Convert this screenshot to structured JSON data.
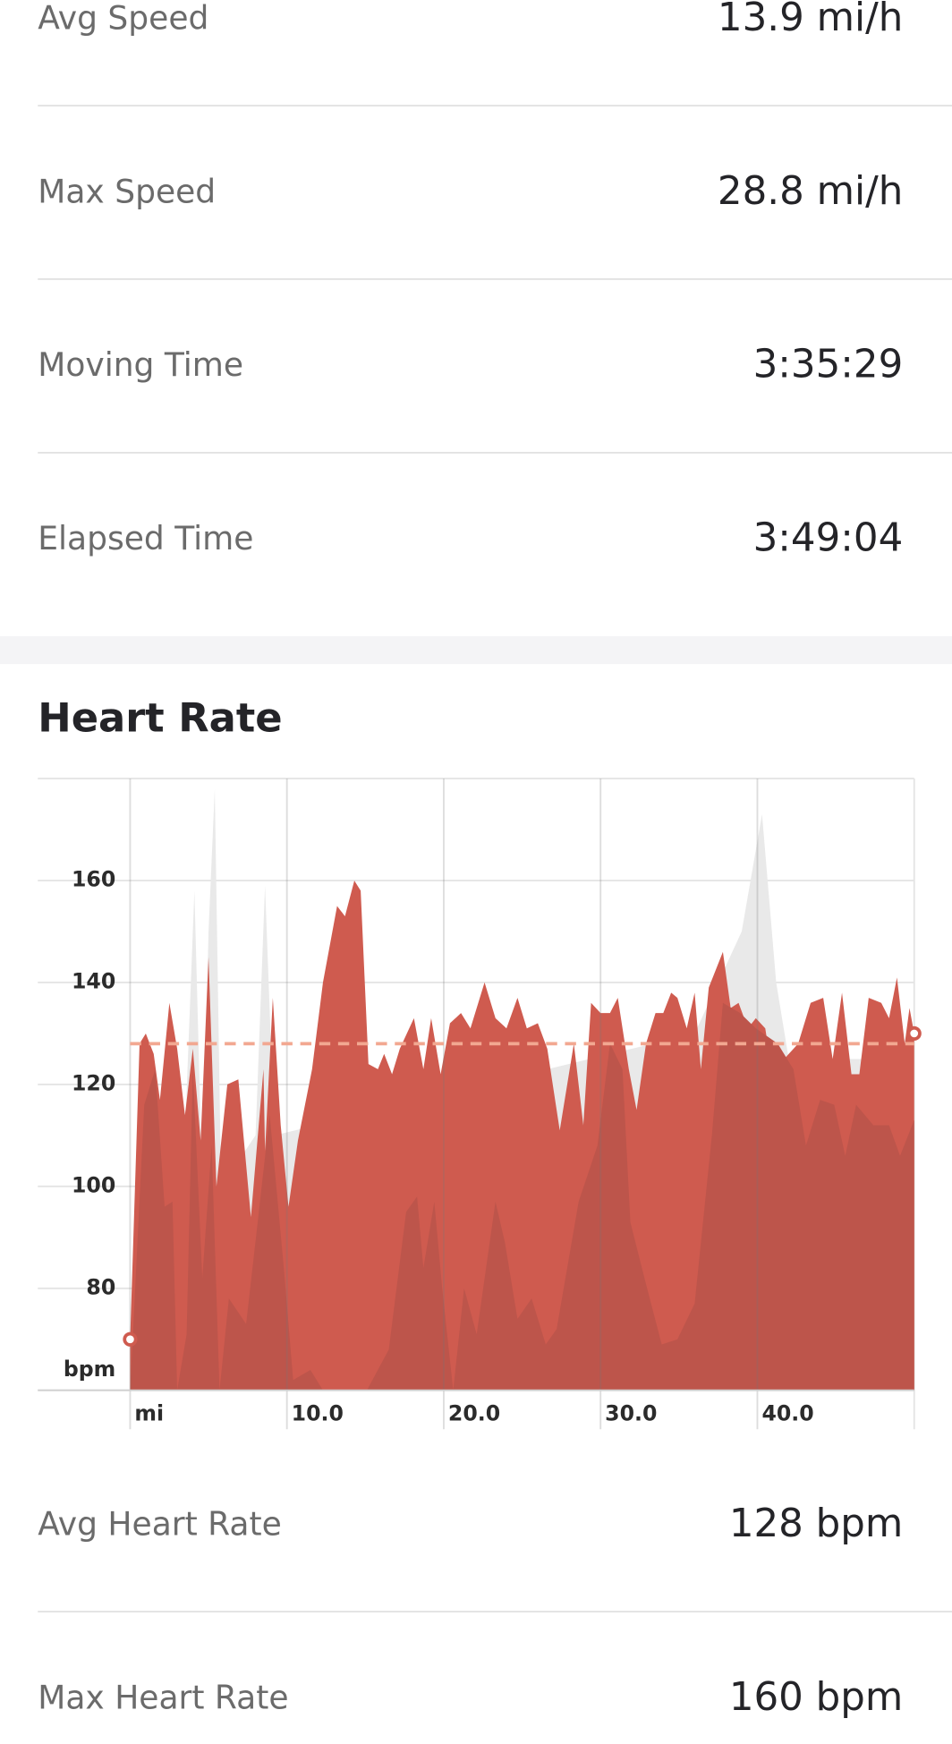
{
  "stats": [
    {
      "label": "Avg Speed",
      "value": "13.9 mi/h"
    },
    {
      "label": "Max Speed",
      "value": "28.8 mi/h"
    },
    {
      "label": "Moving Time",
      "value": "3:35:29"
    },
    {
      "label": "Elapsed Time",
      "value": "3:49:04"
    }
  ],
  "chart_data": {
    "type": "area",
    "title": "Heart Rate",
    "series": [
      {
        "color": "#e9e9e9",
        "x": [
          0,
          3.5,
          4.1,
          4.6,
          5.0,
          5.4,
          5.8,
          8.0,
          8.6,
          9.2,
          36,
          37.5,
          39,
          40.3,
          41.2,
          42,
          50
        ],
        "values": [
          60,
          110,
          158,
          100,
          150,
          178,
          100,
          110,
          159,
          110,
          130,
          140,
          150,
          173,
          140,
          125,
          125
        ]
      },
      {
        "color": "#cf5b4f",
        "x": [
          0,
          0.6,
          1,
          1.5,
          1.9,
          2.5,
          3,
          3.5,
          4,
          4.5,
          5,
          5.5,
          6.2,
          6.9,
          7.7,
          8.5,
          8.6,
          9.1,
          9.6,
          10.1,
          10.7,
          11.6,
          12.3,
          13.2,
          13.7,
          14.3,
          14.7,
          15.2,
          15.8,
          16.2,
          16.7,
          17.2,
          18.1,
          18.7,
          19.2,
          19.8,
          20.4,
          21.1,
          21.7,
          22.6,
          23.3,
          24,
          24.7,
          25.3,
          26,
          26.6,
          27.4,
          28.3,
          28.9,
          29.4,
          30,
          30.6,
          31.1,
          31.8,
          32.3,
          32.9,
          33.5,
          34,
          34.5,
          34.9,
          35.5,
          36,
          36.4,
          36.9,
          37.8,
          38.3,
          38.8,
          39.4,
          39.9,
          40.5,
          40.9,
          41.7,
          42.6,
          43.4,
          44.2,
          44.8,
          45.4,
          46,
          46.5,
          47.1,
          47.9,
          48.4,
          48.9,
          49.4,
          49.7,
          50
        ],
        "values": [
          70,
          128,
          130,
          126,
          117,
          136,
          127,
          114,
          127,
          109,
          145,
          100,
          120,
          121,
          94,
          123,
          107,
          137,
          112,
          96,
          109,
          123,
          140,
          155,
          153,
          160,
          158,
          124,
          123,
          126,
          122,
          127,
          133,
          123,
          133,
          122,
          132,
          134,
          131,
          140,
          133,
          131,
          137,
          131,
          132,
          127,
          111,
          128,
          112,
          136,
          134,
          134,
          137,
          123,
          115,
          128,
          134,
          134,
          138,
          137,
          131,
          138,
          123,
          139,
          146,
          135,
          136,
          131,
          133,
          131,
          123,
          125,
          128,
          136,
          137,
          125,
          138,
          122,
          122,
          137,
          136,
          133,
          141,
          128,
          135,
          130
        ]
      },
      {
        "color": "#bd554b",
        "x": [
          0,
          0.9,
          1.6,
          2.2,
          2.7,
          3,
          3.6,
          4,
          4.6,
          5.2,
          5.7,
          6.3,
          7.4,
          8.1,
          8.9,
          9.8,
          10.4,
          11.5,
          12.3,
          15.1,
          16.5,
          17.6,
          18.3,
          18.7,
          19.4,
          19.9,
          20.6,
          21.3,
          22.1,
          23.3,
          23.9,
          24.7,
          25.6,
          26.5,
          27.2,
          28.6,
          29.8,
          30.6,
          31.4,
          31.9,
          32.8,
          33.9,
          34.9,
          36,
          37.1,
          37.8,
          38.9,
          39.9,
          41.3,
          42.3,
          43.1,
          44,
          44.9,
          45.6,
          46.3,
          47.4,
          48.4,
          49.1,
          50
        ],
        "values": [
          60,
          116,
          123,
          96,
          97,
          60,
          71,
          123,
          82,
          108,
          60,
          78,
          73,
          92,
          114,
          84,
          62,
          64,
          60,
          60,
          68,
          95,
          98,
          84,
          97,
          80,
          60,
          80,
          71,
          97,
          89,
          74,
          78,
          69,
          72,
          97,
          108,
          128,
          123,
          93,
          82,
          69,
          70,
          77,
          110,
          136,
          134,
          131,
          128,
          123,
          108,
          117,
          116,
          106,
          116,
          112,
          112,
          106,
          113
        ]
      }
    ],
    "avg_line": 128,
    "avg_line_color": "#f2a891",
    "xlim": [
      0,
      50
    ],
    "xticks": [
      {
        "value": 0,
        "label": "mi"
      },
      {
        "value": 10,
        "label": "10.0"
      },
      {
        "value": 20,
        "label": "20.0"
      },
      {
        "value": 30,
        "label": "30.0"
      },
      {
        "value": 40,
        "label": "40.0"
      }
    ],
    "ylim": [
      60,
      180
    ],
    "yticks": [
      {
        "value": 60,
        "label": "bpm"
      },
      80,
      100,
      120,
      140,
      160
    ],
    "grid": true
  },
  "heart_rate_stats": [
    {
      "label": "Avg Heart Rate",
      "value": "128 bpm"
    },
    {
      "label": "Max Heart Rate",
      "value": "160 bpm"
    }
  ]
}
